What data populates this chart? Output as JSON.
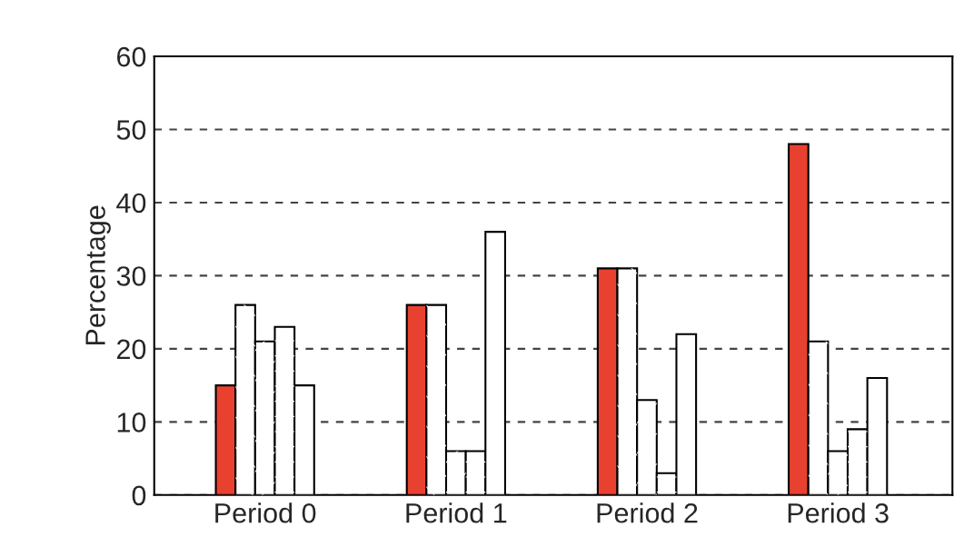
{
  "chart_data": {
    "type": "bar",
    "ylabel": "Percentage",
    "categories": [
      "Period 0",
      "Period 1",
      "Period 2",
      "Period 3"
    ],
    "series": [
      {
        "color": "#e8412f",
        "values": [
          15,
          26,
          31,
          48
        ]
      },
      {
        "color": "#ffffff",
        "values": [
          26,
          26,
          31,
          21
        ]
      },
      {
        "color": "#ffffff",
        "values": [
          21,
          6,
          13,
          6
        ]
      },
      {
        "color": "#ffffff",
        "values": [
          23,
          6,
          3,
          9
        ]
      },
      {
        "color": "#ffffff",
        "values": [
          15,
          36,
          22,
          16
        ]
      }
    ],
    "ylim": [
      0,
      60
    ],
    "yticks": [
      0,
      10,
      20,
      30,
      40,
      50,
      60
    ],
    "grid": "y"
  }
}
